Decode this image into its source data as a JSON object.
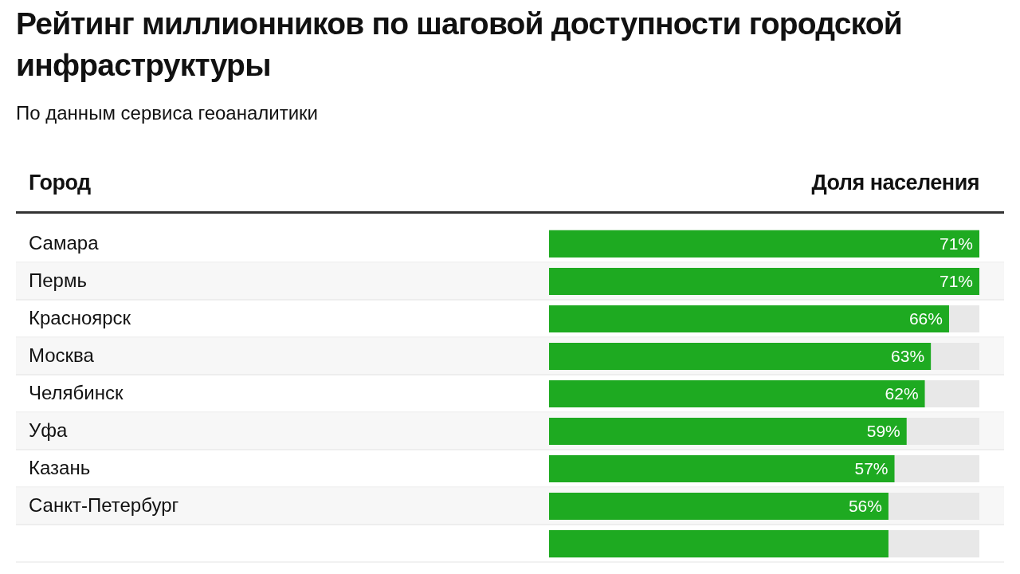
{
  "chart_data": {
    "type": "bar",
    "orientation": "horizontal",
    "title": "Рейтинг миллионников по шаговой доступности городской инфраструктуры",
    "subtitle": "По данным сервиса геоаналитики",
    "ylabel": "Город",
    "xlabel": "Доля населения",
    "categories": [
      "Самара",
      "Пермь",
      "Красноярск",
      "Москва",
      "Челябинск",
      "Уфа",
      "Казань",
      "Санкт-Петербург",
      null
    ],
    "values": [
      71,
      71,
      66,
      63,
      62,
      59,
      57,
      56,
      56
    ],
    "value_labels": [
      "71%",
      "71%",
      "66%",
      "63%",
      "62%",
      "59%",
      "57%",
      "56%",
      null
    ],
    "color": "#1eaa21",
    "tick_labels": "y"
  }
}
